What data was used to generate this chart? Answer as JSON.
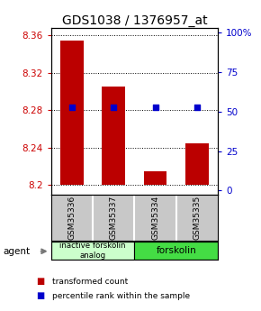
{
  "title": "GDS1038 / 1376957_at",
  "categories": [
    "GSM35336",
    "GSM35337",
    "GSM35334",
    "GSM35335"
  ],
  "bar_values": [
    8.355,
    8.305,
    8.215,
    8.245
  ],
  "bar_base": 8.2,
  "blue_dot_values": [
    8.283,
    8.283,
    8.283,
    8.283
  ],
  "bar_color": "#bb0000",
  "dot_color": "#0000cc",
  "ylim_left": [
    8.19,
    8.368
  ],
  "yticks_left": [
    8.2,
    8.24,
    8.28,
    8.32,
    8.36
  ],
  "ytick_labels_left": [
    "8.2",
    "8.24",
    "8.28",
    "8.32",
    "8.36"
  ],
  "ylim_right": [
    -2.5,
    103.0
  ],
  "yticks_right": [
    0,
    25,
    50,
    75,
    100
  ],
  "ytick_labels_right": [
    "0",
    "25",
    "50",
    "75",
    "100%"
  ],
  "group1_label": "inactive forskolin\nanalog",
  "group2_label": "forskolin",
  "group1_color": "#ccffcc",
  "group2_color": "#44dd44",
  "sample_row_color": "#c8c8c8",
  "agent_label": "agent",
  "background_color": "#ffffff",
  "left_color": "#cc0000",
  "right_color": "#0000cc",
  "title_fontsize": 10,
  "tick_fontsize": 7.5,
  "bar_width": 0.55,
  "legend_fontsize": 6.5
}
